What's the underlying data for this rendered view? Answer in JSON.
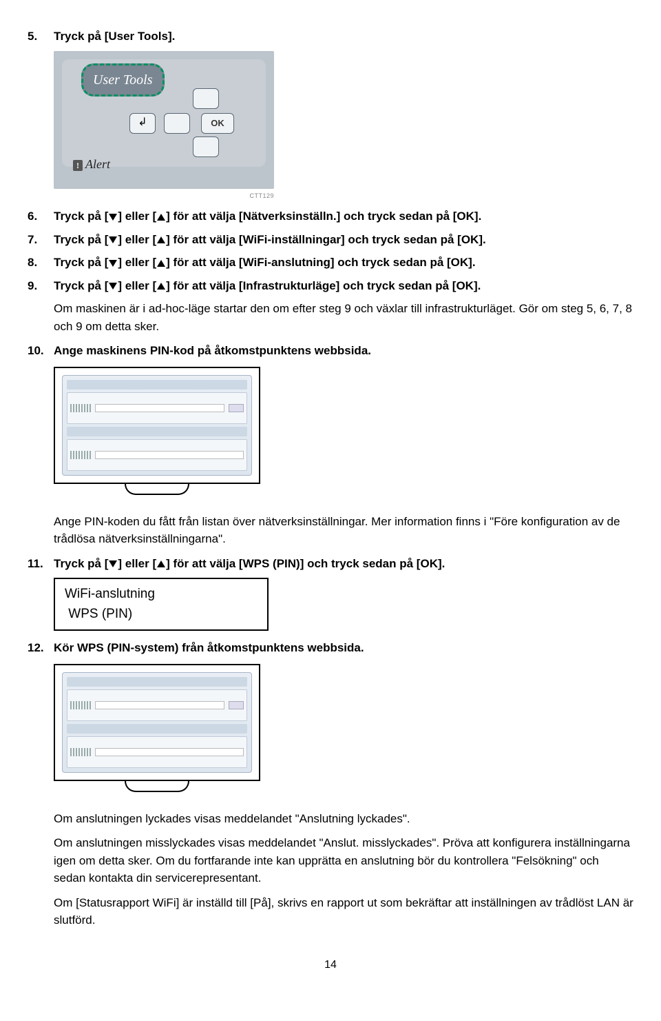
{
  "steps": {
    "s5": {
      "num": "5.",
      "text": "Tryck på [User Tools]."
    },
    "panel": {
      "user_tools": "User Tools",
      "ok": "OK",
      "alert": "Alert",
      "ref": "CTT129"
    },
    "s6": {
      "num": "6.",
      "pre": "Tryck på [",
      "mid": "] eller [",
      "post": "] för att välja [Nätverksinställn.] och tryck sedan på [OK]."
    },
    "s7": {
      "num": "7.",
      "pre": "Tryck på [",
      "mid": "] eller [",
      "post": "] för att välja [WiFi-inställningar] och tryck sedan på [OK]."
    },
    "s8": {
      "num": "8.",
      "pre": "Tryck på [",
      "mid": "] eller [",
      "post": "] för att välja [WiFi-anslutning] och tryck sedan på [OK]."
    },
    "s9": {
      "num": "9.",
      "pre": "Tryck på [",
      "mid": "] eller [",
      "post": "] för att välja [Infrastrukturläge] och tryck sedan på [OK]."
    },
    "s9b": "Om maskinen är i ad-hoc-läge startar den om efter steg 9 och växlar till infrastrukturläget. Gör om steg 5, 6, 7, 8 och 9 om detta sker.",
    "s10": {
      "num": "10.",
      "text": "Ange maskinens PIN-kod på åtkomstpunktens webbsida."
    },
    "s10b": "Ange PIN-koden du fått från listan över nätverksinställningar. Mer information finns i \"Före konfiguration av de trådlösa nätverksinställningarna\".",
    "s11": {
      "num": "11.",
      "pre": "Tryck på [",
      "mid": "] eller [",
      "post": "] för att välja [WPS (PIN)] och tryck sedan på [OK]."
    },
    "lcd": {
      "line1": "WiFi-anslutning",
      "line2": "WPS  (PIN)"
    },
    "s12": {
      "num": "12.",
      "text": "Kör WPS (PIN-system) från åtkomstpunktens webbsida."
    },
    "s12b": "Om anslutningen lyckades visas meddelandet \"Anslutning lyckades\".",
    "s12c": "Om anslutningen misslyckades visas meddelandet \"Anslut. misslyckades\". Pröva att konfigurera inställningarna igen om detta sker. Om du fortfarande inte kan upprätta en anslutning bör du kontrollera \"Felsökning\" och sedan kontakta din servicerepresentant.",
    "s12d": "Om [Statusrapport WiFi] är inställd till [På], skrivs en rapport ut som bekräftar att inställningen av trådlöst LAN är slutförd."
  },
  "pagenum": "14"
}
